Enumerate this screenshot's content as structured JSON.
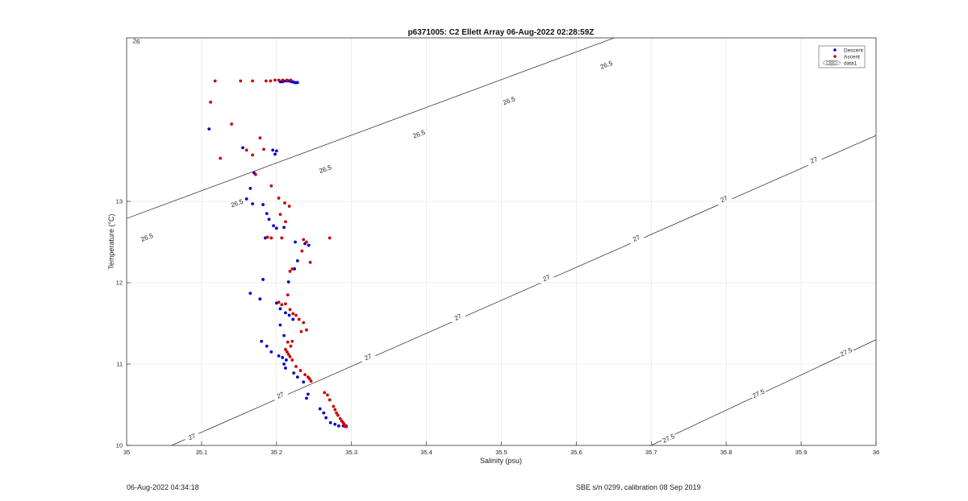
{
  "chart_data": {
    "type": "scatter",
    "title": "p6371005: C2 Ellett Array 06-Aug-2022 02:28:59Z",
    "xlabel": "Salinity (psu)",
    "ylabel": "Temperature (°C)",
    "xlim": [
      35,
      36
    ],
    "ylim": [
      10,
      15
    ],
    "xticks": [
      "35",
      "35.1",
      "35.2",
      "35.3",
      "35.4",
      "35.5",
      "35.6",
      "35.7",
      "35.8",
      "35.9",
      "36"
    ],
    "yticks": [
      "10",
      "11",
      "12",
      "13"
    ],
    "grid": true,
    "legend_position": "top-right",
    "legend": [
      "Descent",
      "Ascent",
      "data1"
    ],
    "series": [
      {
        "name": "Descent",
        "color": "#0000cc",
        "x": [
          35.11,
          35.155,
          35.17,
          35.195,
          35.198,
          35.2,
          35.165,
          35.16,
          35.168,
          35.182,
          35.187,
          35.19,
          35.196,
          35.2,
          35.185,
          35.21,
          35.225,
          35.238,
          35.243,
          35.228,
          35.224,
          35.216,
          35.182,
          35.165,
          35.178,
          35.2,
          35.205,
          35.212,
          35.217,
          35.222,
          35.205,
          35.21,
          35.18,
          35.187,
          35.193,
          35.203,
          35.208,
          35.213,
          35.21,
          35.212,
          35.223,
          35.228,
          35.236,
          35.242,
          35.24,
          35.258,
          35.263,
          35.266,
          35.272,
          35.278,
          35.283,
          35.289,
          35.293,
          35.205,
          35.208,
          35.21,
          35.213,
          35.216,
          35.218,
          35.22,
          35.222,
          35.224,
          35.226,
          35.228
        ],
        "y": [
          13.89,
          13.66,
          13.35,
          13.63,
          13.58,
          13.62,
          13.16,
          13.03,
          12.97,
          12.96,
          12.85,
          12.78,
          12.7,
          12.67,
          12.55,
          12.68,
          12.5,
          12.48,
          12.46,
          12.27,
          12.17,
          12.01,
          12.04,
          11.87,
          11.8,
          11.75,
          11.68,
          11.63,
          11.6,
          11.55,
          11.48,
          11.35,
          11.28,
          11.22,
          11.15,
          11.1,
          11.08,
          11.05,
          11.0,
          10.95,
          10.89,
          10.84,
          10.78,
          10.63,
          10.58,
          10.45,
          10.4,
          10.34,
          10.28,
          10.26,
          10.24,
          10.24,
          10.24,
          14.47,
          14.47,
          14.48,
          14.48,
          14.48,
          14.48,
          14.47,
          14.47,
          14.46,
          14.46,
          14.46
        ]
      },
      {
        "name": "Ascent",
        "color": "#cc0000",
        "x": [
          35.118,
          35.152,
          35.168,
          35.186,
          35.192,
          35.198,
          35.203,
          35.208,
          35.214,
          35.219,
          35.112,
          35.14,
          35.125,
          35.16,
          35.178,
          35.183,
          35.168,
          35.172,
          35.193,
          35.203,
          35.211,
          35.217,
          35.205,
          35.212,
          35.188,
          35.193,
          35.207,
          35.236,
          35.271,
          35.24,
          35.234,
          35.245,
          35.221,
          35.218,
          35.215,
          35.203,
          35.207,
          35.212,
          35.218,
          35.222,
          35.226,
          35.23,
          35.236,
          35.233,
          35.24,
          35.215,
          35.221,
          35.219,
          35.212,
          35.214,
          35.216,
          35.218,
          35.221,
          35.226,
          35.232,
          35.238,
          35.242,
          35.244,
          35.246,
          35.264,
          35.268,
          35.271,
          35.276,
          35.278,
          35.28,
          35.282,
          35.285,
          35.287,
          35.289,
          35.29,
          35.291,
          35.292,
          35.293
        ],
        "y": [
          14.48,
          14.48,
          14.48,
          14.48,
          14.48,
          14.49,
          14.49,
          14.49,
          14.49,
          14.49,
          14.22,
          13.95,
          13.53,
          13.63,
          13.78,
          13.64,
          13.57,
          13.33,
          13.19,
          13.04,
          12.98,
          12.94,
          12.84,
          12.75,
          12.56,
          12.55,
          12.55,
          12.53,
          12.55,
          12.5,
          12.39,
          12.25,
          12.17,
          12.14,
          11.85,
          11.76,
          11.73,
          11.74,
          11.67,
          11.62,
          11.6,
          11.55,
          11.51,
          11.4,
          11.42,
          11.27,
          11.28,
          11.22,
          11.18,
          11.15,
          11.12,
          11.09,
          11.05,
          10.97,
          10.92,
          10.87,
          10.84,
          10.82,
          10.79,
          10.65,
          10.62,
          10.56,
          10.48,
          10.44,
          10.4,
          10.37,
          10.33,
          10.3,
          10.28,
          10.26,
          10.24,
          10.23,
          10.23
        ]
      }
    ],
    "contours": [
      {
        "label": "26",
        "points": [
          [
            34.7,
            15.53
          ],
          [
            35.033,
            15.1
          ]
        ],
        "labels_at": [
          [
            35.013,
            14.97
          ]
        ]
      },
      {
        "label": "26.5",
        "points": [
          [
            35.0,
            12.79
          ],
          [
            35.68,
            15.11
          ]
        ],
        "labels_at": [
          [
            35.027,
            12.56
          ],
          [
            35.147,
            12.98
          ],
          [
            35.265,
            13.4
          ],
          [
            35.39,
            13.83
          ],
          [
            35.51,
            14.24
          ],
          [
            35.64,
            14.68
          ]
        ]
      },
      {
        "label": "27",
        "points": [
          [
            35.06,
            10.0
          ],
          [
            36.0,
            13.81
          ]
        ],
        "labels_at": [
          [
            35.087,
            10.11
          ],
          [
            35.205,
            10.62
          ],
          [
            35.322,
            11.09
          ],
          [
            35.442,
            11.58
          ],
          [
            35.56,
            12.06
          ],
          [
            35.68,
            12.55
          ],
          [
            35.797,
            13.03
          ],
          [
            35.917,
            13.51
          ]
        ]
      },
      {
        "label": "27.5",
        "points": [
          [
            35.7,
            10.0
          ],
          [
            36.0,
            11.3
          ]
        ],
        "labels_at": [
          [
            35.723,
            10.09
          ],
          [
            35.843,
            10.64
          ],
          [
            35.96,
            11.15
          ]
        ]
      }
    ]
  },
  "footer": {
    "left": "06-Aug-2022 04:34:18",
    "right": "SBE s/n 0299, calibration 08 Sep 2019"
  }
}
